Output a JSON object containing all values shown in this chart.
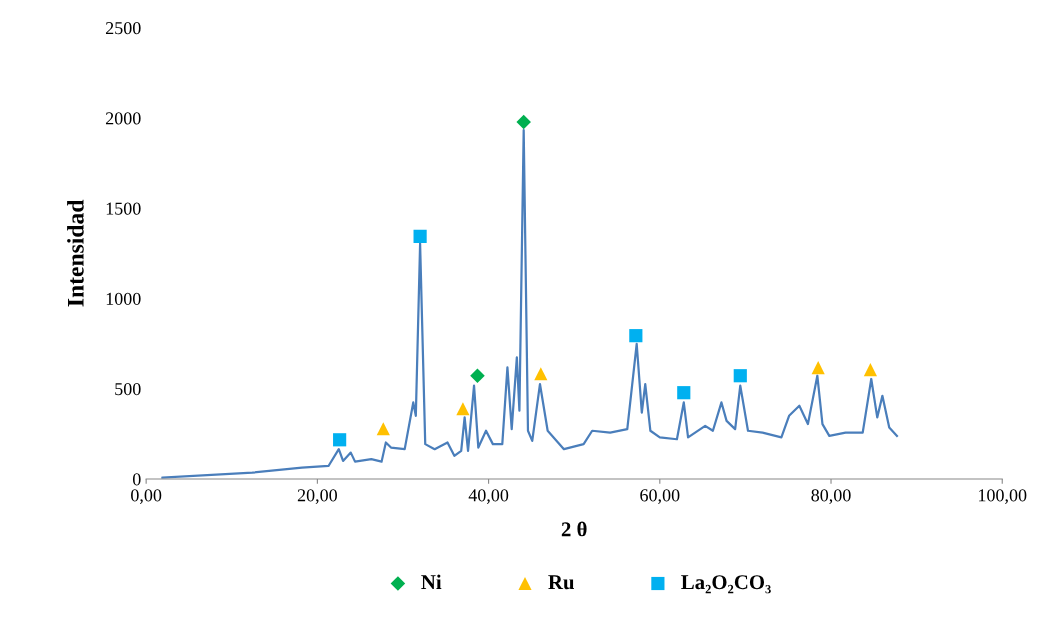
{
  "chart_data": {
    "type": "line",
    "xlabel": "2 θ",
    "ylabel": "Intensidad",
    "xlim": [
      0,
      100
    ],
    "ylim": [
      0,
      2500
    ],
    "xticks": [
      {
        "value": 0,
        "label": "0,00"
      },
      {
        "value": 20,
        "label": "20,00"
      },
      {
        "value": 40,
        "label": "40,00"
      },
      {
        "value": 60,
        "label": "60,00"
      },
      {
        "value": 80,
        "label": "80,00"
      },
      {
        "value": 100,
        "label": "100,00"
      }
    ],
    "yticks": [
      0,
      500,
      1000,
      1500,
      2000,
      2500
    ],
    "grid": false,
    "legend": "bottom",
    "series": [
      {
        "color": "#4a7ebb",
        "marker": "none",
        "x": [
          1.9,
          12.4,
          18.2,
          21.3,
          22.5,
          23.0,
          23.9,
          24.4,
          26.3,
          27.5,
          28.0,
          28.6,
          30.2,
          31.2,
          31.5,
          32.0,
          32.6,
          33.7,
          35.2,
          36.0,
          36.8,
          37.2,
          37.6,
          38.3,
          38.8,
          39.7,
          40.5,
          41.6,
          42.2,
          42.7,
          43.3,
          43.6,
          44.1,
          44.6,
          45.1,
          46.0,
          46.9,
          48.8,
          51.1,
          52.1,
          54.2,
          56.2,
          57.3,
          57.9,
          58.3,
          58.9,
          60.0,
          62.0,
          62.8,
          63.3,
          65.3,
          66.2,
          67.2,
          67.8,
          68.8,
          69.4,
          70.3,
          72.0,
          74.2,
          75.1,
          76.3,
          77.3,
          78.4,
          79.0,
          79.8,
          81.7,
          83.7,
          84.7,
          85.4,
          86.0,
          86.8,
          87.7
        ],
        "values": [
          7,
          35,
          63,
          72,
          165,
          100,
          146,
          96,
          110,
          96,
          202,
          174,
          165,
          424,
          350,
          1304,
          193,
          165,
          202,
          128,
          156,
          341,
          156,
          517,
          174,
          267,
          193,
          193,
          618,
          276,
          674,
          378,
          1933,
          267,
          211,
          526,
          267,
          165,
          193,
          267,
          257,
          276,
          748,
          368,
          526,
          267,
          230,
          220,
          424,
          230,
          294,
          267,
          424,
          322,
          276,
          517,
          267,
          257,
          230,
          350,
          406,
          304,
          572,
          304,
          239,
          257,
          257,
          554,
          341,
          461,
          285,
          239
        ]
      },
      {
        "type": "scatter",
        "name": "Ni",
        "color": "#00b050",
        "marker": "diamond",
        "x": [
          38.7,
          44.1
        ],
        "values": [
          572,
          1978
        ]
      },
      {
        "type": "scatter",
        "name": "Ru",
        "color": "#ffc000",
        "marker": "triangle",
        "x": [
          27.7,
          37.0,
          46.1,
          78.5,
          84.6
        ],
        "values": [
          278,
          389,
          583,
          617,
          606
        ]
      },
      {
        "type": "scatter",
        "name": "La₂O₂CO₃",
        "color": "#00b0f0",
        "marker": "square",
        "x": [
          22.6,
          32.0,
          57.2,
          62.8,
          69.4
        ],
        "values": [
          217,
          1344,
          794,
          478,
          572
        ]
      }
    ]
  }
}
